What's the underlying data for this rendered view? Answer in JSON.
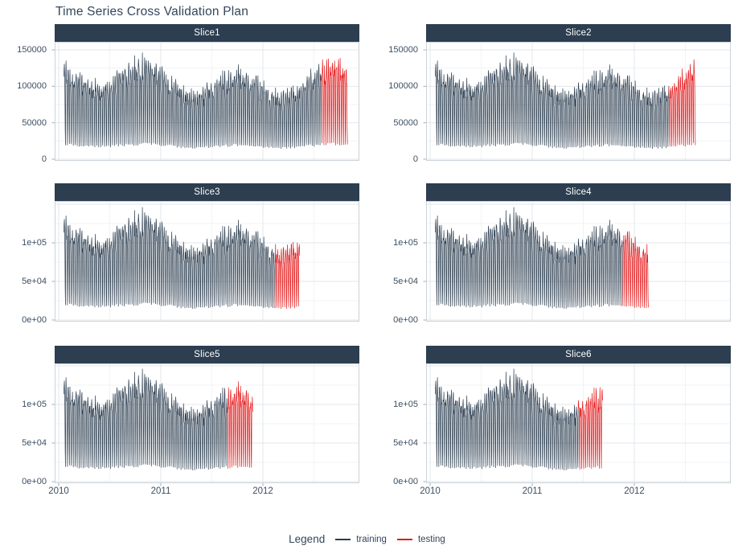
{
  "title": "Time Series Cross Validation Plan",
  "colors": {
    "training": "#2c3e50",
    "testing": "#e31a1c",
    "strip_bg": "#2c3e50",
    "strip_text": "#ffffff",
    "grid_major": "#e2e7eb",
    "grid_minor": "#f0f3f5",
    "panel_border": "#ccd3d9",
    "tick_mark": "#9fb0ba",
    "axis_text": "#3d4f63",
    "title_text": "#35465a"
  },
  "legend": {
    "title": "Legend",
    "items": [
      {
        "name": "training",
        "color": "#2c3e50"
      },
      {
        "name": "testing",
        "color": "#e31a1c"
      }
    ]
  },
  "axes": {
    "x_ticks": [
      {
        "year": 2010,
        "label": "2010"
      },
      {
        "year": 2011,
        "label": "2011"
      },
      {
        "year": 2012,
        "label": "2012"
      }
    ],
    "rows": [
      {
        "y_ticks": [
          {
            "value": 150000,
            "label": "150000"
          },
          {
            "value": 100000,
            "label": "100000"
          },
          {
            "value": 50000,
            "label": "50000"
          },
          {
            "value": 0,
            "label": "0"
          }
        ]
      },
      {
        "y_ticks": [
          {
            "value": 100000,
            "label": "1e+05"
          },
          {
            "value": 50000,
            "label": "5e+04"
          },
          {
            "value": 0,
            "label": "0e+00"
          }
        ]
      },
      {
        "y_ticks": [
          {
            "value": 100000,
            "label": "1e+05"
          },
          {
            "value": 50000,
            "label": "5e+04"
          },
          {
            "value": 0,
            "label": "0e+00"
          }
        ]
      }
    ]
  },
  "chart_data": {
    "type": "line",
    "title": "Time Series Cross Validation Plan",
    "xlabel": "",
    "ylabel": "",
    "x_ticks": [
      "2010",
      "2011",
      "2012"
    ],
    "x_range_years": [
      2010.0,
      2012.95
    ],
    "y_limit": [
      0,
      155000
    ],
    "y_tick_values": [
      0,
      50000,
      100000,
      150000
    ],
    "grid": "on",
    "legend_position": "bottom",
    "series_summary": {
      "granularity": "daily",
      "seasonality": "weekly",
      "approx_value_range": [
        8000,
        150000
      ],
      "data_start_year": 2010.05
    },
    "panels": [
      {
        "name": "Slice1",
        "data_start": 2010.05,
        "train_end": 2012.57,
        "test_end": 2012.83
      },
      {
        "name": "Slice2",
        "data_start": 2010.05,
        "train_end": 2012.34,
        "test_end": 2012.6
      },
      {
        "name": "Slice3",
        "data_start": 2010.05,
        "train_end": 2012.12,
        "test_end": 2012.36
      },
      {
        "name": "Slice4",
        "data_start": 2010.05,
        "train_end": 2011.89,
        "test_end": 2012.14
      },
      {
        "name": "Slice5",
        "data_start": 2010.05,
        "train_end": 2011.65,
        "test_end": 2011.9
      },
      {
        "name": "Slice6",
        "data_start": 2010.05,
        "train_end": 2011.45,
        "test_end": 2011.69
      }
    ],
    "legend_entries": [
      "training",
      "testing"
    ]
  }
}
